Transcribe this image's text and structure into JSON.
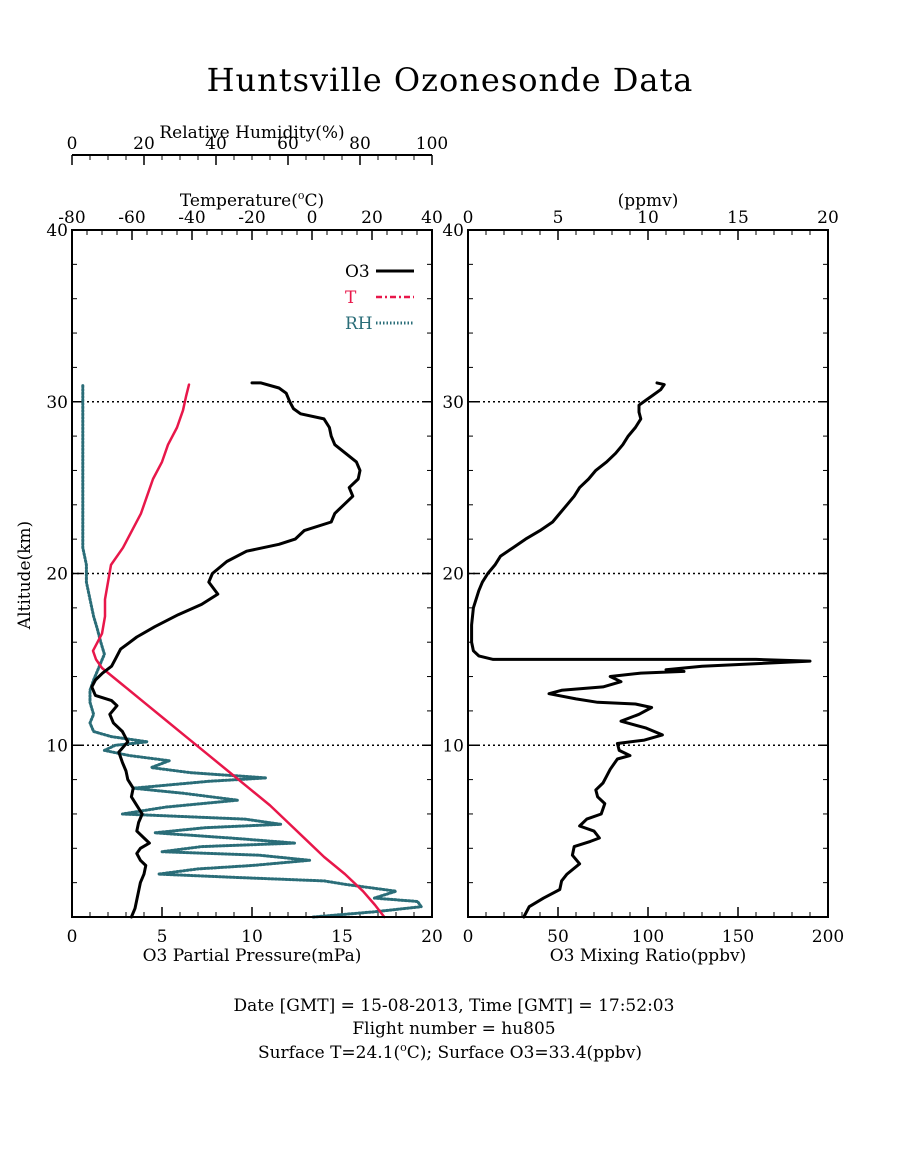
{
  "title": "Huntsville Ozonesonde Data",
  "colors": {
    "o3": "#000000",
    "t": "#e8174a",
    "rh": "#2a6d78",
    "axis": "#000000"
  },
  "footer": {
    "line1": "Date [GMT] = 15-08-2013,  Time [GMT] = 17:52:03",
    "line2": "Flight number = hu805",
    "line3_prefix": "Surface T=24.1(",
    "line3_deg": "o",
    "line3_suffix": "C); Surface O3=33.4(ppbv)"
  },
  "legend": {
    "o3": "O3",
    "t": "T",
    "rh": "RH"
  },
  "chart_data": [
    {
      "type": "line",
      "ylabel": "Altitude(km)",
      "ylim": [
        0,
        40
      ],
      "yticks": [
        "10",
        "20",
        "30",
        "40"
      ],
      "gridlines_at": [
        10,
        20,
        30
      ],
      "legend_position": "top-right",
      "x_axes": {
        "bottom": {
          "label": "O3 Partial Pressure(mPa)",
          "range": [
            0,
            20
          ],
          "ticks": [
            "0",
            "5",
            "10",
            "15",
            "20"
          ]
        },
        "top_temperature": {
          "label_prefix": "Temperature(",
          "label_deg": "o",
          "label_suffix": "C)",
          "range": [
            -80,
            40
          ],
          "ticks": [
            "-80",
            "-60",
            "-40",
            "-20",
            "0",
            "20",
            "40"
          ]
        },
        "top_humidity": {
          "label": "Relative Humidity(%)",
          "range": [
            0,
            100
          ],
          "ticks": [
            "0",
            "20",
            "40",
            "60",
            "80",
            "100"
          ]
        }
      },
      "series": [
        {
          "name": "O3",
          "axis": "bottom",
          "points": [
            [
              3.3,
              0
            ],
            [
              3.5,
              0.5
            ],
            [
              3.6,
              1
            ],
            [
              3.7,
              1.5
            ],
            [
              3.8,
              2
            ],
            [
              4.0,
              2.5
            ],
            [
              4.1,
              3
            ],
            [
              3.8,
              3.3
            ],
            [
              3.6,
              3.7
            ],
            [
              3.8,
              4
            ],
            [
              4.3,
              4.3
            ],
            [
              4.0,
              4.6
            ],
            [
              3.6,
              5
            ],
            [
              3.7,
              5.5
            ],
            [
              3.9,
              6
            ],
            [
              3.6,
              6.5
            ],
            [
              3.3,
              7
            ],
            [
              3.4,
              7.5
            ],
            [
              3.1,
              8
            ],
            [
              3.0,
              8.5
            ],
            [
              2.8,
              9
            ],
            [
              2.6,
              9.6
            ],
            [
              3.1,
              10.2
            ],
            [
              2.8,
              10.8
            ],
            [
              2.3,
              11.3
            ],
            [
              2.1,
              11.8
            ],
            [
              2.5,
              12.3
            ],
            [
              2.2,
              12.6
            ],
            [
              1.3,
              12.9
            ],
            [
              1.1,
              13.4
            ],
            [
              1.3,
              13.8
            ],
            [
              1.7,
              14.2
            ],
            [
              2.2,
              14.6
            ],
            [
              2.4,
              15
            ],
            [
              2.7,
              15.6
            ],
            [
              3.6,
              16.3
            ],
            [
              4.6,
              16.9
            ],
            [
              5.9,
              17.6
            ],
            [
              7.2,
              18.2
            ],
            [
              8.1,
              18.8
            ],
            [
              7.6,
              19.5
            ],
            [
              7.8,
              20
            ],
            [
              8.6,
              20.7
            ],
            [
              9.7,
              21.3
            ],
            [
              11.5,
              21.7
            ],
            [
              12.4,
              22
            ],
            [
              12.9,
              22.5
            ],
            [
              14.4,
              23
            ],
            [
              14.6,
              23.5
            ],
            [
              15.1,
              24
            ],
            [
              15.6,
              24.5
            ],
            [
              15.4,
              25
            ],
            [
              15.9,
              25.5
            ],
            [
              16.0,
              26
            ],
            [
              15.8,
              26.5
            ],
            [
              15.2,
              27
            ],
            [
              14.6,
              27.5
            ],
            [
              14.4,
              28
            ],
            [
              14.3,
              28.5
            ],
            [
              14.0,
              29
            ],
            [
              12.7,
              29.3
            ],
            [
              12.3,
              29.6
            ],
            [
              12.1,
              30
            ],
            [
              11.9,
              30.5
            ],
            [
              11.5,
              30.8
            ],
            [
              10.5,
              31.1
            ],
            [
              10.0,
              31.1
            ]
          ]
        },
        {
          "name": "T",
          "axis": "top_temperature",
          "points": [
            [
              24.1,
              0
            ],
            [
              21,
              0.7
            ],
            [
              17,
              1.5
            ],
            [
              11,
              2.5
            ],
            [
              4,
              3.5
            ],
            [
              -2,
              4.5
            ],
            [
              -8,
              5.5
            ],
            [
              -14,
              6.5
            ],
            [
              -21,
              7.5
            ],
            [
              -28,
              8.5
            ],
            [
              -35,
              9.5
            ],
            [
              -42,
              10.5
            ],
            [
              -49,
              11.5
            ],
            [
              -56,
              12.5
            ],
            [
              -63,
              13.5
            ],
            [
              -70,
              14.5
            ],
            [
              -72,
              15
            ],
            [
              -73,
              15.5
            ],
            [
              -70,
              16.5
            ],
            [
              -69,
              17.5
            ],
            [
              -69,
              18.5
            ],
            [
              -68,
              19.5
            ],
            [
              -67,
              20.5
            ],
            [
              -63,
              21.5
            ],
            [
              -60,
              22.5
            ],
            [
              -57,
              23.5
            ],
            [
              -55,
              24.5
            ],
            [
              -53,
              25.5
            ],
            [
              -50,
              26.5
            ],
            [
              -48,
              27.5
            ],
            [
              -45,
              28.5
            ],
            [
              -43,
              29.5
            ],
            [
              -42,
              30.3
            ],
            [
              -41,
              31
            ]
          ]
        },
        {
          "name": "RH",
          "axis": "top_humidity",
          "points": [
            [
              67,
              0
            ],
            [
              84,
              0.3
            ],
            [
              97,
              0.6
            ],
            [
              96,
              0.9
            ],
            [
              84,
              1.1
            ],
            [
              90,
              1.5
            ],
            [
              76,
              1.9
            ],
            [
              70,
              2.1
            ],
            [
              46,
              2.3
            ],
            [
              24,
              2.5
            ],
            [
              35,
              2.8
            ],
            [
              50,
              3.0
            ],
            [
              66,
              3.3
            ],
            [
              52,
              3.6
            ],
            [
              25,
              3.8
            ],
            [
              36,
              4.1
            ],
            [
              62,
              4.3
            ],
            [
              44,
              4.6
            ],
            [
              23,
              4.9
            ],
            [
              37,
              5.2
            ],
            [
              58,
              5.4
            ],
            [
              48,
              5.7
            ],
            [
              14,
              6
            ],
            [
              26,
              6.4
            ],
            [
              46,
              6.8
            ],
            [
              31,
              7.2
            ],
            [
              17,
              7.5
            ],
            [
              38,
              7.9
            ],
            [
              54,
              8.1
            ],
            [
              33,
              8.4
            ],
            [
              22,
              8.7
            ],
            [
              27,
              9.1
            ],
            [
              16,
              9.4
            ],
            [
              9,
              9.7
            ],
            [
              12,
              10
            ],
            [
              21,
              10.2
            ],
            [
              11,
              10.5
            ],
            [
              6,
              10.8
            ],
            [
              5,
              11.3
            ],
            [
              6,
              11.8
            ],
            [
              5,
              12.5
            ],
            [
              5,
              13.2
            ],
            [
              6,
              13.8
            ],
            [
              7,
              14.3
            ],
            [
              8,
              14.8
            ],
            [
              9,
              15.3
            ],
            [
              8,
              16
            ],
            [
              7,
              16.8
            ],
            [
              6,
              17.5
            ],
            [
              5,
              18.5
            ],
            [
              4,
              19.5
            ],
            [
              4,
              20.5
            ],
            [
              3,
              21.5
            ],
            [
              3,
              22.5
            ],
            [
              3,
              23.5
            ],
            [
              3,
              24.5
            ],
            [
              3,
              25.5
            ],
            [
              3,
              26.5
            ],
            [
              3,
              27.5
            ],
            [
              3,
              28.5
            ],
            [
              3,
              29.5
            ],
            [
              3,
              30.3
            ],
            [
              3,
              31
            ]
          ]
        }
      ]
    },
    {
      "type": "line",
      "ylabel": "",
      "ylim": [
        0,
        40
      ],
      "yticks": [
        "10",
        "20",
        "30",
        "40"
      ],
      "gridlines_at": [
        10,
        20,
        30
      ],
      "x_axes": {
        "bottom": {
          "label": "O3 Mixing Ratio(ppbv)",
          "range": [
            0,
            200
          ],
          "ticks": [
            "0",
            "50",
            "100",
            "150",
            "200"
          ]
        },
        "top": {
          "label": "(ppmv)",
          "range": [
            0,
            20
          ],
          "ticks": [
            "0",
            "5",
            "10",
            "15",
            "20"
          ]
        }
      },
      "series": [
        {
          "name": "O3",
          "axis": "bottom",
          "points": [
            [
              31,
              0
            ],
            [
              34,
              0.6
            ],
            [
              42,
              1.1
            ],
            [
              51,
              1.6
            ],
            [
              52,
              2.1
            ],
            [
              55,
              2.5
            ],
            [
              62,
              3.1
            ],
            [
              58,
              3.6
            ],
            [
              59,
              4.1
            ],
            [
              68,
              4.4
            ],
            [
              73,
              4.6
            ],
            [
              70,
              5
            ],
            [
              62,
              5.3
            ],
            [
              66,
              5.7
            ],
            [
              74,
              6
            ],
            [
              76,
              6.6
            ],
            [
              72,
              7
            ],
            [
              71,
              7.4
            ],
            [
              75,
              7.8
            ],
            [
              77,
              8.2
            ],
            [
              79,
              8.6
            ],
            [
              83,
              9.2
            ],
            [
              90,
              9.4
            ],
            [
              84,
              9.7
            ],
            [
              83,
              10.1
            ],
            [
              98,
              10.3
            ],
            [
              108,
              10.6
            ],
            [
              99,
              11
            ],
            [
              85,
              11.4
            ],
            [
              95,
              11.8
            ],
            [
              102,
              12.2
            ],
            [
              93,
              12.4
            ],
            [
              72,
              12.5
            ],
            [
              60,
              12.7
            ],
            [
              45,
              13
            ],
            [
              52,
              13.2
            ],
            [
              75,
              13.4
            ],
            [
              85,
              13.7
            ],
            [
              79,
              14
            ],
            [
              96,
              14.2
            ],
            [
              120,
              14.3
            ],
            [
              110,
              14.4
            ],
            [
              130,
              14.6
            ],
            [
              190,
              14.9
            ],
            [
              160,
              15
            ],
            [
              14,
              15
            ],
            [
              6,
              15.2
            ],
            [
              3,
              15.5
            ],
            [
              2,
              16
            ],
            [
              2,
              17
            ],
            [
              3,
              18
            ],
            [
              6,
              19
            ],
            [
              8,
              19.5
            ],
            [
              11,
              20
            ],
            [
              15,
              20.5
            ],
            [
              18,
              21
            ],
            [
              25,
              21.5
            ],
            [
              32,
              22
            ],
            [
              40,
              22.5
            ],
            [
              47,
              23
            ],
            [
              51,
              23.5
            ],
            [
              55,
              24
            ],
            [
              59,
              24.5
            ],
            [
              62,
              25
            ],
            [
              67,
              25.5
            ],
            [
              71,
              26
            ],
            [
              77,
              26.5
            ],
            [
              82,
              27
            ],
            [
              86,
              27.5
            ],
            [
              89,
              28
            ],
            [
              93,
              28.5
            ],
            [
              96,
              29
            ],
            [
              95,
              29.4
            ],
            [
              95,
              29.8
            ],
            [
              99,
              30.1
            ],
            [
              103,
              30.4
            ],
            [
              107,
              30.7
            ],
            [
              109,
              31
            ],
            [
              105,
              31.1
            ]
          ]
        }
      ]
    }
  ]
}
